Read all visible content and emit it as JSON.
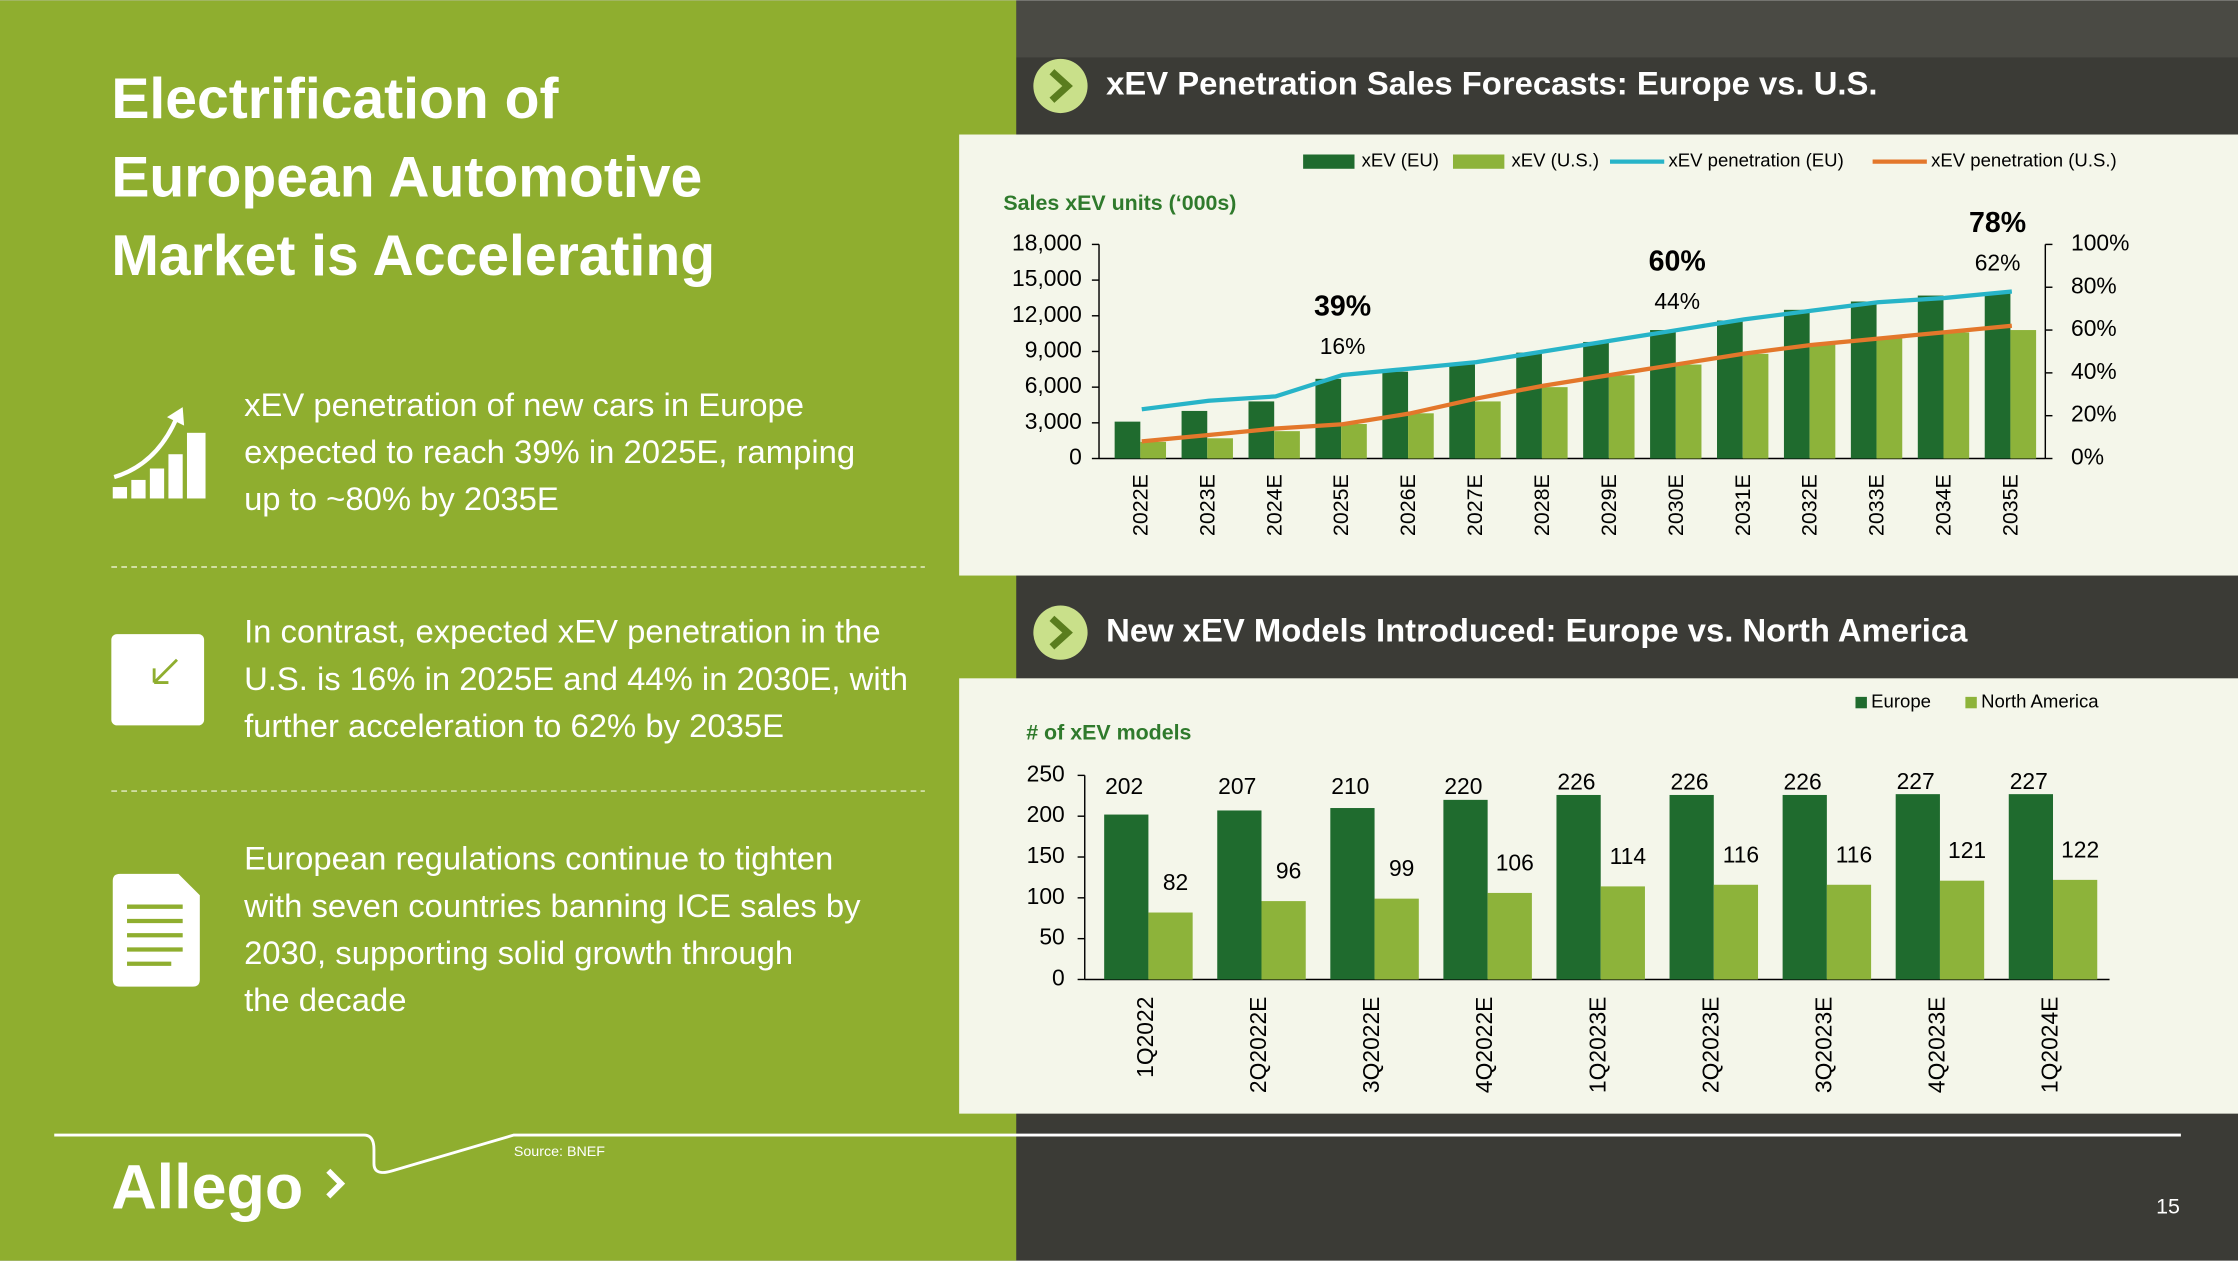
{
  "slide": {
    "title_lines": [
      "Electrification of",
      "European Automotive",
      "Market is Accelerating"
    ],
    "bullets": [
      [
        "xEV penetration of new cars in Europe",
        "expected to reach 39% in 2025E, ramping",
        "up to ~80% by 2035E"
      ],
      [
        "In contrast, expected xEV penetration in the",
        "U.S. is 16% in 2025E and 44% in 2030E, with",
        "further acceleration to 62% by 2035E"
      ],
      [
        "European regulations continue to tighten",
        "with seven countries banning ICE sales by",
        "2030, supporting solid growth through",
        "the decade"
      ]
    ],
    "source": "Source: BNEF",
    "logo": "Allego",
    "page_number": "15"
  },
  "chart_data": [
    {
      "type": "combo",
      "title": "xEV Penetration Sales Forecasts: Europe vs. U.S.",
      "y_label": "Sales xEV units (‘000s)",
      "categories": [
        "2022E",
        "2023E",
        "2024E",
        "2025E",
        "2026E",
        "2027E",
        "2028E",
        "2029E",
        "2030E",
        "2031E",
        "2032E",
        "2033E",
        "2034E",
        "2035E"
      ],
      "series": [
        {
          "name": "xEV (EU)",
          "color": "#1f6b2e",
          "values": [
            3100,
            4000,
            4800,
            6700,
            7300,
            7900,
            8900,
            9800,
            10800,
            11600,
            12500,
            13200,
            13700,
            14000
          ]
        },
        {
          "name": "xEV (U.S.)",
          "color": "#8db33a",
          "values": [
            1400,
            1700,
            2300,
            2900,
            3800,
            4800,
            6000,
            7000,
            7900,
            8800,
            9600,
            10200,
            10600,
            10800
          ]
        },
        {
          "name": "xEV penetration (EU)",
          "color": "#27b4c8",
          "axis": "y2",
          "values": [
            23,
            27,
            29,
            39,
            42,
            45,
            50,
            55,
            60,
            65,
            69,
            73,
            75,
            78
          ],
          "value_labels": [
            null,
            null,
            null,
            "39%",
            null,
            null,
            null,
            null,
            "60%",
            null,
            null,
            null,
            null,
            "78%"
          ]
        },
        {
          "name": "xEV penetration (U.S.)",
          "color": "#e3772b",
          "axis": "y2",
          "values": [
            8,
            11,
            14,
            16,
            21,
            28,
            34,
            39,
            44,
            49,
            53,
            56,
            59,
            62
          ],
          "value_labels": [
            null,
            null,
            null,
            "16%",
            null,
            null,
            null,
            null,
            "44%",
            null,
            null,
            null,
            null,
            "62%"
          ]
        }
      ],
      "ylim": [
        0,
        18000
      ],
      "yticks": [
        0,
        {
          "value": 3000,
          "label": "3,000"
        },
        {
          "value": 6000,
          "label": "6,000"
        },
        {
          "value": 9000,
          "label": "9,000"
        },
        {
          "value": 12000,
          "label": "12,000"
        },
        {
          "value": 15000,
          "label": "15,000"
        },
        {
          "value": 18000,
          "label": "18,000"
        }
      ],
      "y2lim": [
        0,
        100
      ],
      "y2ticks": [
        {
          "value": 0,
          "label": "0%"
        },
        {
          "value": 20,
          "label": "20%"
        },
        {
          "value": 40,
          "label": "40%"
        },
        {
          "value": 60,
          "label": "60%"
        },
        {
          "value": 80,
          "label": "80%"
        },
        {
          "value": 100,
          "label": "100%"
        }
      ],
      "legend": "top"
    },
    {
      "type": "bar",
      "title": "New xEV Models Introduced: Europe vs. North America",
      "y_label": "# of xEV models",
      "categories": [
        "1Q2022",
        "2Q2022E",
        "3Q2022E",
        "4Q2022E",
        "1Q2023E",
        "2Q2023E",
        "3Q2023E",
        "4Q2023E",
        "1Q2024E"
      ],
      "series": [
        {
          "name": "Europe",
          "color": "#1f6b2e",
          "values": [
            202,
            207,
            210,
            220,
            226,
            226,
            226,
            227,
            227
          ]
        },
        {
          "name": "North America",
          "color": "#8db33a",
          "values": [
            82,
            96,
            99,
            106,
            114,
            116,
            116,
            121,
            122
          ]
        }
      ],
      "ylim": [
        0,
        250
      ],
      "yticks": [
        0,
        50,
        100,
        150,
        200,
        250
      ],
      "legend": "top-right"
    }
  ]
}
